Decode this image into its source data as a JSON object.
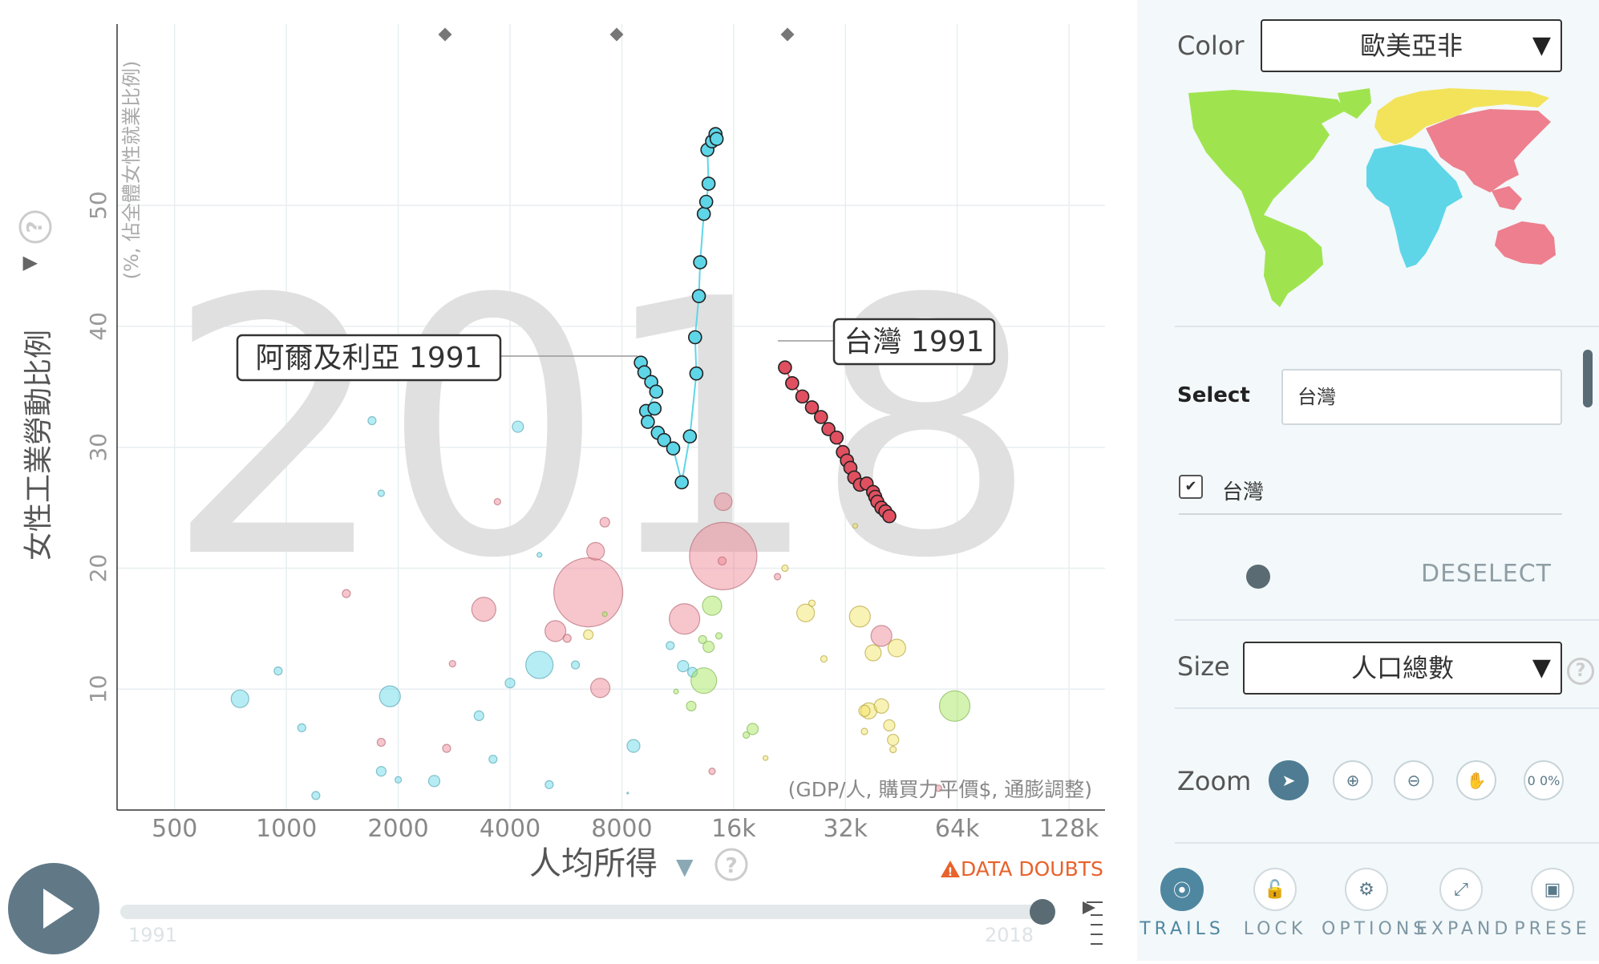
{
  "chart": {
    "year_watermark": "2018",
    "y_axis": {
      "label": "女性工業勞動比例",
      "sublabel": "(%, 佔全體女性就業比例)",
      "ticks": [
        "10",
        "20",
        "30",
        "40",
        "50"
      ]
    },
    "x_axis": {
      "label": "人均所得",
      "sublabel": "(GDP/人, 購買力平價$, 通膨調整)",
      "ticks": [
        "500",
        "1000",
        "2000",
        "4000",
        "8000",
        "16k",
        "32k",
        "64k",
        "128k"
      ]
    },
    "help_glyph": "?",
    "data_doubts": "DATA DOUBTS",
    "timeline": {
      "start": "1991",
      "end": "2018",
      "progress": 1.0
    },
    "labels": {
      "algeria": "阿爾及利亞 1991",
      "taiwan": "台灣 1991"
    }
  },
  "sidebar": {
    "color": {
      "label": "Color",
      "value": "歐美亞非"
    },
    "select": {
      "label": "Select",
      "value": "台灣",
      "checked_item": "台灣",
      "deselect": "DESELECT"
    },
    "size": {
      "label": "Size",
      "value": "人口總數"
    },
    "zoom": {
      "label": "Zoom",
      "percent": "0 0%"
    },
    "tools": [
      "TRAILS",
      "LOCK",
      "OPTIONS",
      "EXPAND",
      "PRESE"
    ]
  },
  "colors": {
    "africa": "#5ed6e8",
    "europe": "#f2e35a",
    "asia": "#ee7f8e",
    "americas": "#9fe44f",
    "accent": "#4f87a1",
    "warning": "#e8622c"
  },
  "chart_data": {
    "type": "scatter",
    "xlog": true,
    "xlim": [
      350,
      160000
    ],
    "ylim": [
      0,
      65
    ],
    "trails": [
      {
        "name": "阿爾及利亞",
        "color": "#5ed6e8",
        "points": [
          [
            9000,
            37
          ],
          [
            9200,
            36.2
          ],
          [
            9600,
            35.4
          ],
          [
            9900,
            34.6
          ],
          [
            9300,
            33
          ],
          [
            9800,
            33.2
          ],
          [
            9400,
            32.1
          ],
          [
            10000,
            31.2
          ],
          [
            10400,
            30.6
          ],
          [
            11000,
            29.9
          ],
          [
            11600,
            27.1
          ],
          [
            12200,
            30.9
          ],
          [
            12700,
            36.1
          ],
          [
            12600,
            39.1
          ],
          [
            12900,
            42.5
          ],
          [
            13000,
            45.3
          ],
          [
            13300,
            49.3
          ],
          [
            13500,
            50.3
          ],
          [
            13700,
            51.8
          ],
          [
            13600,
            54.6
          ],
          [
            14000,
            55.3
          ],
          [
            14300,
            55.9
          ],
          [
            14400,
            55.5
          ]
        ]
      },
      {
        "name": "台灣",
        "color": "#e05060",
        "points": [
          [
            22000,
            36.6
          ],
          [
            23000,
            35.3
          ],
          [
            24500,
            34.2
          ],
          [
            26000,
            33.3
          ],
          [
            27500,
            32.5
          ],
          [
            28800,
            31.5
          ],
          [
            30300,
            30.8
          ],
          [
            31500,
            29.6
          ],
          [
            32300,
            28.9
          ],
          [
            33000,
            28.3
          ],
          [
            33800,
            27.5
          ],
          [
            35000,
            26.9
          ],
          [
            36500,
            27
          ],
          [
            38000,
            26.3
          ],
          [
            38500,
            25.9
          ],
          [
            39000,
            25.5
          ],
          [
            40000,
            25
          ],
          [
            41000,
            24.7
          ],
          [
            42000,
            24.3
          ]
        ]
      }
    ],
    "bubbles": [
      [
        6500,
        18,
        43,
        "asia"
      ],
      [
        15000,
        21,
        42,
        "asia"
      ],
      [
        5300,
        14.8,
        13,
        "asia"
      ],
      [
        11800,
        15.8,
        19,
        "asia"
      ],
      [
        3400,
        16.6,
        15,
        "asia"
      ],
      [
        7000,
        10.1,
        12,
        "asia"
      ],
      [
        6800,
        21.4,
        11,
        "asia"
      ],
      [
        15000,
        25.5,
        11,
        "asia"
      ],
      [
        40000,
        14.4,
        13,
        "asia"
      ],
      [
        7200,
        23.8,
        6,
        "asia"
      ],
      [
        1450,
        17.9,
        5,
        "asia"
      ],
      [
        2800,
        12.1,
        4,
        "asia"
      ],
      [
        1800,
        5.6,
        5,
        "asia"
      ],
      [
        2700,
        5.1,
        5,
        "asia"
      ],
      [
        14000,
        3.2,
        4,
        "asia"
      ],
      [
        57000,
        1.8,
        4,
        "asia"
      ],
      [
        3700,
        25.5,
        4,
        "asia"
      ],
      [
        21000,
        19.3,
        4,
        "asia"
      ],
      [
        5700,
        14.2,
        5,
        "asia"
      ],
      [
        14900,
        20.6,
        5,
        "asia"
      ],
      [
        4800,
        12,
        17,
        "africa"
      ],
      [
        1900,
        9.4,
        13,
        "africa"
      ],
      [
        750,
        9.2,
        11,
        "africa"
      ],
      [
        8300,
        1.4,
        1,
        "africa"
      ],
      [
        8600,
        5.3,
        8,
        "africa"
      ],
      [
        11700,
        11.9,
        7,
        "africa"
      ],
      [
        10800,
        13.6,
        5,
        "africa"
      ],
      [
        3300,
        7.8,
        6,
        "africa"
      ],
      [
        2500,
        2.4,
        7,
        "africa"
      ],
      [
        1800,
        3.2,
        6,
        "africa"
      ],
      [
        4200,
        31.7,
        7,
        "africa"
      ],
      [
        1700,
        32.2,
        5,
        "africa"
      ],
      [
        1800,
        26.2,
        4,
        "africa"
      ],
      [
        2000,
        2.5,
        4,
        "africa"
      ],
      [
        1200,
        1.2,
        5,
        "africa"
      ],
      [
        4000,
        10.5,
        6,
        "africa"
      ],
      [
        950,
        11.5,
        5,
        "africa"
      ],
      [
        6000,
        12,
        5,
        "africa"
      ],
      [
        3600,
        4.2,
        5,
        "africa"
      ],
      [
        5100,
        2.1,
        5,
        "africa"
      ],
      [
        1100,
        6.8,
        5,
        "africa"
      ],
      [
        4800,
        21.1,
        3,
        "africa"
      ],
      [
        12400,
        11.4,
        6,
        "africa"
      ],
      [
        35000,
        16,
        13,
        "europe"
      ],
      [
        25000,
        16.3,
        11,
        "europe"
      ],
      [
        44000,
        13.4,
        11,
        "europe"
      ],
      [
        38000,
        13,
        10,
        "europe"
      ],
      [
        37000,
        8.2,
        10,
        "europe"
      ],
      [
        40000,
        8.6,
        9,
        "europe"
      ],
      [
        36000,
        8.2,
        7,
        "europe"
      ],
      [
        42000,
        7,
        7,
        "europe"
      ],
      [
        43000,
        5.8,
        7,
        "europe"
      ],
      [
        6500,
        14.5,
        6,
        "europe"
      ],
      [
        34000,
        23.5,
        3,
        "europe"
      ],
      [
        26000,
        17.1,
        4,
        "europe"
      ],
      [
        22000,
        20,
        4,
        "europe"
      ],
      [
        28000,
        12.5,
        4,
        "europe"
      ],
      [
        43000,
        5,
        4,
        "europe"
      ],
      [
        36000,
        6.5,
        4,
        "europe"
      ],
      [
        19500,
        4.3,
        3,
        "europe"
      ],
      [
        13300,
        10.7,
        16,
        "americas"
      ],
      [
        63000,
        8.6,
        19,
        "americas"
      ],
      [
        14000,
        16.9,
        12,
        "americas"
      ],
      [
        13700,
        13.5,
        7,
        "americas"
      ],
      [
        18000,
        6.7,
        7,
        "americas"
      ],
      [
        12300,
        8.6,
        6,
        "americas"
      ],
      [
        13200,
        14.1,
        5,
        "americas"
      ],
      [
        17300,
        6.2,
        4,
        "americas"
      ],
      [
        14600,
        14.4,
        4,
        "americas"
      ],
      [
        11200,
        9.8,
        3,
        "americas"
      ],
      [
        7200,
        16.2,
        3,
        "americas"
      ]
    ]
  }
}
